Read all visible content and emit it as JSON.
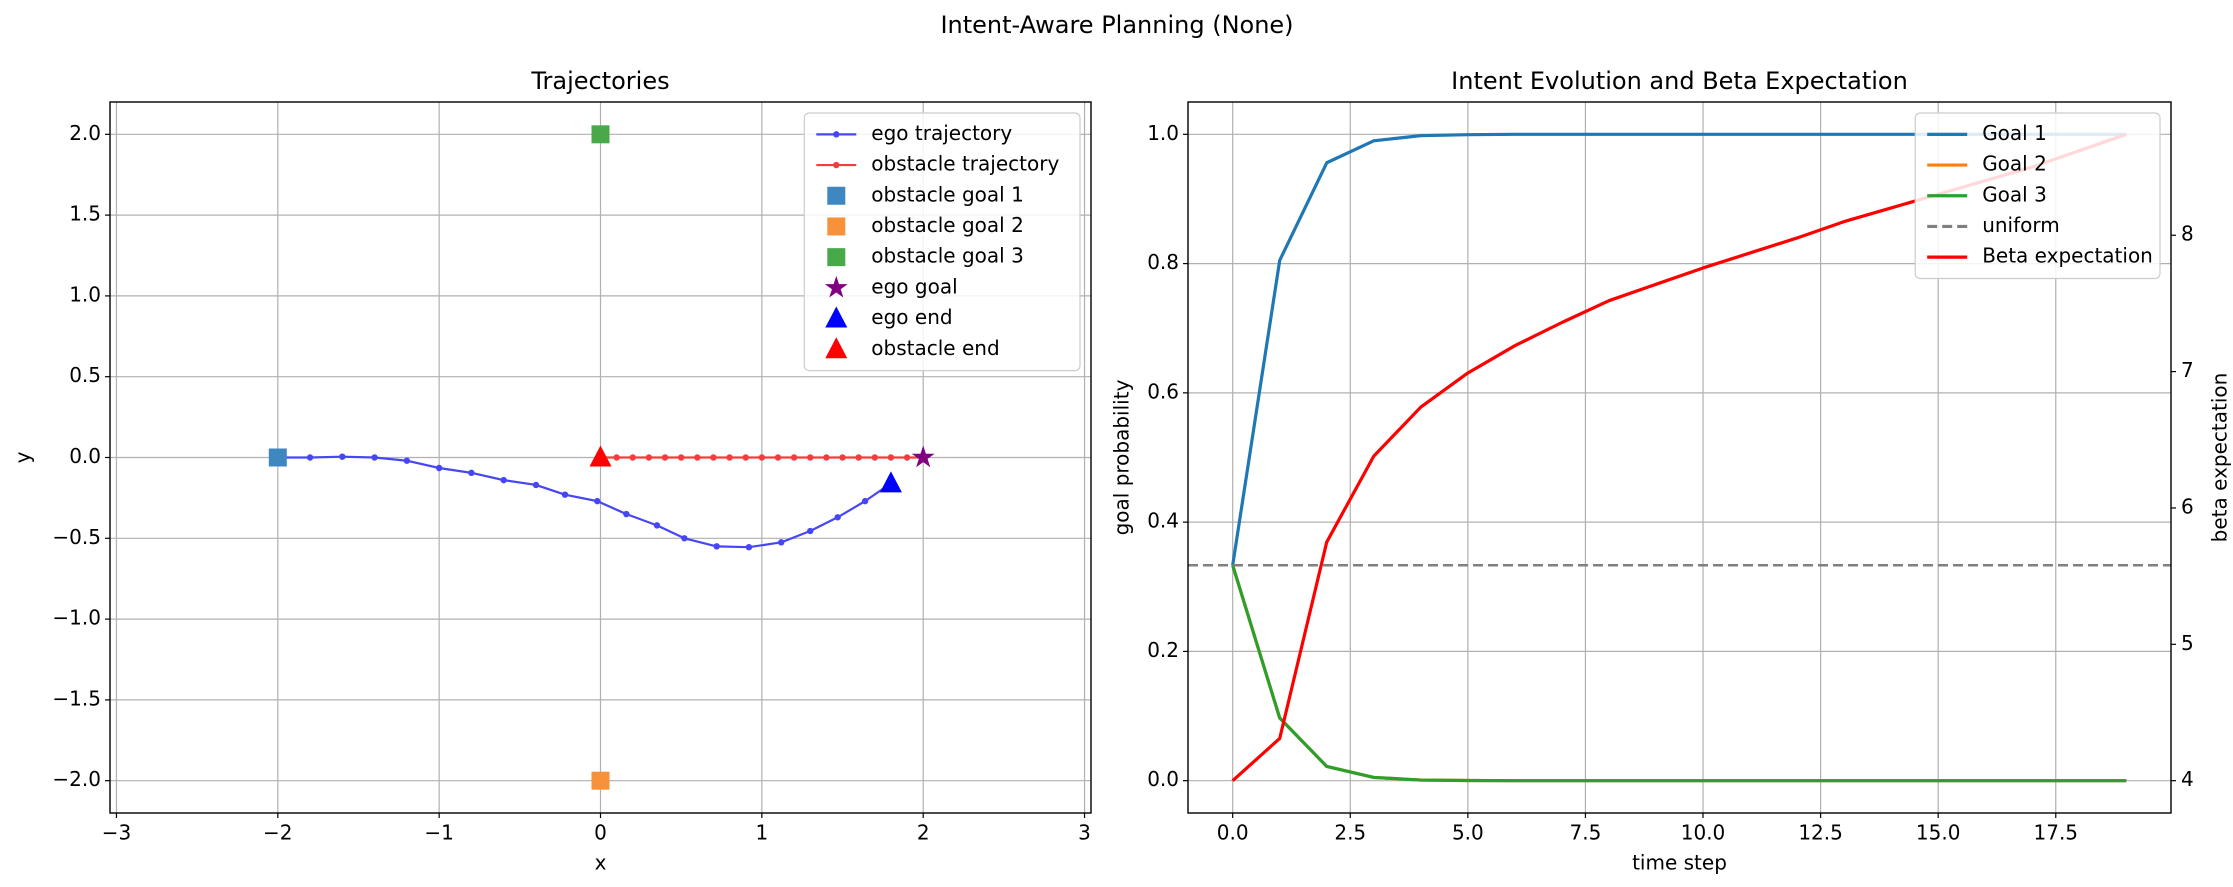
{
  "title": "Intent-Aware Planning (None)",
  "chart_data": [
    {
      "type": "line",
      "title": "Trajectories",
      "xlabel": "x",
      "ylabel": "y",
      "xlim": [
        -3.04,
        3.04
      ],
      "ylim": [
        -2.2,
        2.2
      ],
      "xticks": [
        {
          "value": -3,
          "label": "−3"
        },
        {
          "value": -2,
          "label": "−2"
        },
        {
          "value": -1,
          "label": "−1"
        },
        0,
        1,
        2,
        3
      ],
      "yticks": [
        {
          "value": -2.0,
          "label": "−2.0"
        },
        {
          "value": -1.5,
          "label": "−1.5"
        },
        {
          "value": -1.0,
          "label": "−1.0"
        },
        {
          "value": -0.5,
          "label": "−0.5"
        },
        {
          "value": 0.0,
          "label": "0.0"
        },
        0.5,
        {
          "value": 1.0,
          "label": "1.0"
        },
        1.5,
        {
          "value": 2.0,
          "label": "2.0"
        }
      ],
      "grid": true,
      "legend": "upper right",
      "series": [
        {
          "name": "ego trajectory",
          "color": "#4646f5",
          "marker": "dot",
          "line": true,
          "x": [
            -2,
            -1.8,
            -1.6,
            -1.4,
            -1.2,
            -1.0,
            -0.8,
            -0.6,
            -0.4,
            -0.22,
            -0.02,
            0.16,
            0.35,
            0.52,
            0.72,
            0.92,
            1.12,
            1.3,
            1.47,
            1.64,
            1.8
          ],
          "values": [
            0,
            0,
            0.005,
            0,
            -0.02,
            -0.065,
            -0.095,
            -0.14,
            -0.17,
            -0.23,
            -0.27,
            -0.35,
            -0.42,
            -0.5,
            -0.55,
            -0.555,
            -0.525,
            -0.455,
            -0.37,
            -0.27,
            -0.16
          ]
        },
        {
          "name": "obstacle trajectory",
          "color": "#f53c3c",
          "marker": "dot",
          "line": true,
          "x": [
            0,
            0.1,
            0.2,
            0.3,
            0.4,
            0.5,
            0.6,
            0.7,
            0.8,
            0.9,
            1.0,
            1.1,
            1.2,
            1.3,
            1.4,
            1.5,
            1.6,
            1.7,
            1.8,
            1.9,
            2.0
          ],
          "values": [
            0,
            0,
            0,
            0,
            0,
            0,
            0,
            0,
            0,
            0,
            0,
            0,
            0,
            0,
            0,
            0,
            0,
            0,
            0,
            0,
            0
          ]
        },
        {
          "name": "obstacle goal 1",
          "color": "#3f87c0",
          "marker": "square",
          "line": false,
          "x": [
            -2
          ],
          "values": [
            0
          ]
        },
        {
          "name": "obstacle goal 2",
          "color": "#f7913a",
          "marker": "square",
          "line": false,
          "x": [
            0
          ],
          "values": [
            -2
          ]
        },
        {
          "name": "obstacle goal 3",
          "color": "#48a948",
          "marker": "square",
          "line": false,
          "x": [
            0
          ],
          "values": [
            2
          ]
        },
        {
          "name": "ego goal",
          "color": "#800080",
          "marker": "star",
          "line": false,
          "x": [
            2
          ],
          "values": [
            0
          ]
        },
        {
          "name": "ego end",
          "color": "#0000ff",
          "marker": "triangle",
          "line": false,
          "x": [
            1.8
          ],
          "values": [
            -0.16
          ]
        },
        {
          "name": "obstacle end",
          "color": "#ff0000",
          "marker": "triangle",
          "line": false,
          "x": [
            0
          ],
          "values": [
            0
          ]
        }
      ]
    },
    {
      "type": "line",
      "title": "Intent Evolution and Beta Expectation",
      "xlabel": "time step",
      "ylabel": "goal probability",
      "ylabel_color": "#0000ff",
      "y2label": "beta expectation",
      "y2label_color": "#ff0000",
      "x": [
        0,
        1,
        2,
        3,
        4,
        5,
        6,
        7,
        8,
        9,
        10,
        11,
        12,
        13,
        14,
        15,
        16,
        17,
        18,
        19
      ],
      "xlim": [
        -0.95,
        19.95
      ],
      "ylim": [
        -0.05,
        1.05
      ],
      "y2lim": [
        3.763,
        8.977
      ],
      "xticks": [
        {
          "value": 0.0,
          "label": "0.0"
        },
        2.5,
        {
          "value": 5.0,
          "label": "5.0"
        },
        7.5,
        {
          "value": 10.0,
          "label": "10.0"
        },
        12.5,
        {
          "value": 15.0,
          "label": "15.0"
        },
        17.5
      ],
      "yticks": [
        {
          "value": 0.0,
          "label": "0.0"
        },
        0.2,
        0.4,
        0.6,
        0.8,
        {
          "value": 1.0,
          "label": "1.0"
        }
      ],
      "y2ticks": [
        4,
        5,
        6,
        7,
        8
      ],
      "grid": true,
      "legend": "upper right",
      "series": [
        {
          "name": "Goal 1",
          "color": "#1f77b4",
          "values": [
            0.3333,
            0.805,
            0.956,
            0.99,
            0.998,
            0.9994,
            1,
            1,
            1,
            1,
            1,
            1,
            1,
            1,
            1,
            1,
            1,
            1,
            1,
            1
          ]
        },
        {
          "name": "Goal 2",
          "color": "#ff7f0e",
          "values": [
            0.3333,
            0.097,
            0.022,
            0.005,
            0.001,
            0.0003,
            0,
            0,
            0,
            0,
            0,
            0,
            0,
            0,
            0,
            0,
            0,
            0,
            0,
            0
          ]
        },
        {
          "name": "Goal 3",
          "color": "#2ca02c",
          "values": [
            0.3333,
            0.097,
            0.022,
            0.005,
            0.001,
            0.0003,
            0,
            0,
            0,
            0,
            0,
            0,
            0,
            0,
            0,
            0,
            0,
            0,
            0,
            0
          ]
        },
        {
          "name": "uniform",
          "color": "#808080",
          "dashed": true,
          "y": 0.3333
        },
        {
          "name": "Beta expectation",
          "color": "#ff0000",
          "axis": "y2",
          "values": [
            4.0,
            4.31,
            5.75,
            6.38,
            6.74,
            6.99,
            7.19,
            7.36,
            7.52,
            7.64,
            7.76,
            7.87,
            7.98,
            8.1,
            8.2,
            8.3,
            8.4,
            8.5,
            8.62,
            8.74
          ]
        }
      ]
    }
  ]
}
